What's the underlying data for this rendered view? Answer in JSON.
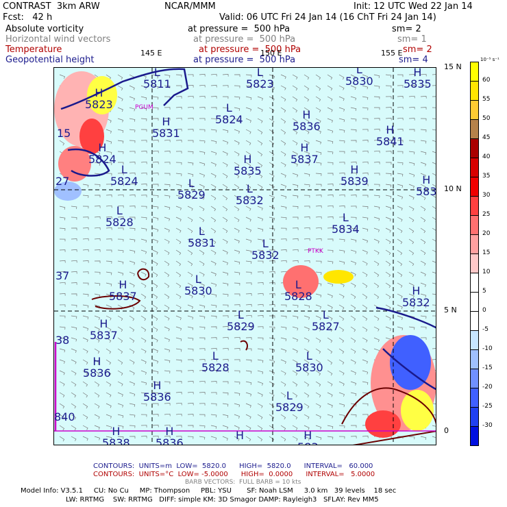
{
  "header": {
    "title_left": "CONTRAST  3km ARW",
    "title_center": "NCAR/MMM",
    "title_right": "Init: 12 UTC Wed 22 Jan 14",
    "forecast_label": "Fcst:   42 h",
    "valid": "Valid: 06 UTC Fri 24 Jan 14 (16 ChT Fri 24 Jan 14)"
  },
  "fields": [
    {
      "name": "Absolute vorticity",
      "level": "at pressure =  500 hPa",
      "sm": "sm= 2",
      "color": "#000000"
    },
    {
      "name": "Horizontal wind vectors",
      "level": "at pressure =  500 hPa",
      "sm": "sm= 1",
      "color": "#808080"
    },
    {
      "name": "Temperature",
      "level": "at pressure =  500 hPa",
      "sm": "sm= 2",
      "color": "#b00000"
    },
    {
      "name": "Geopotential height",
      "level": "at pressure =  500 hPa",
      "sm": "sm= 4",
      "color": "#1a1a8c"
    }
  ],
  "map": {
    "lon_labels": [
      "145 E",
      "150 E",
      "155 E"
    ],
    "lat_labels": [
      "15 N",
      "10 N",
      "5 N",
      "0"
    ],
    "station_labels": [
      "PGUM",
      "PTKK"
    ],
    "edge_values": [
      "15",
      "27",
      "37",
      "38",
      "840"
    ],
    "height_labels": [
      {
        "t": "L",
        "v": "5811"
      },
      {
        "t": "L",
        "v": "5823"
      },
      {
        "t": "L",
        "v": "5830"
      },
      {
        "t": "H",
        "v": "5835"
      },
      {
        "t": "H",
        "v": "5823"
      },
      {
        "t": "L",
        "v": "5824"
      },
      {
        "t": "H",
        "v": "5836"
      },
      {
        "t": "H",
        "v": "5831"
      },
      {
        "t": "H",
        "v": "5841"
      },
      {
        "t": "H",
        "v": "5824"
      },
      {
        "t": "H",
        "v": "5837"
      },
      {
        "t": "H",
        "v": "5835"
      },
      {
        "t": "L",
        "v": "5824"
      },
      {
        "t": "L",
        "v": "5829"
      },
      {
        "t": "L",
        "v": "5832"
      },
      {
        "t": "H",
        "v": "5839"
      },
      {
        "t": "H",
        "v": "583"
      },
      {
        "t": "L",
        "v": "5828"
      },
      {
        "t": "L",
        "v": "5834"
      },
      {
        "t": "L",
        "v": "5831"
      },
      {
        "t": "L",
        "v": "5832"
      },
      {
        "t": "L",
        "v": "5830"
      },
      {
        "t": "H",
        "v": "5837"
      },
      {
        "t": "L",
        "v": "5828"
      },
      {
        "t": "H",
        "v": "5832"
      },
      {
        "t": "H",
        "v": "5837"
      },
      {
        "t": "L",
        "v": "5829"
      },
      {
        "t": "L",
        "v": "5827"
      },
      {
        "t": "H",
        "v": "5836"
      },
      {
        "t": "L",
        "v": "5828"
      },
      {
        "t": "L",
        "v": "5830"
      },
      {
        "t": "H",
        "v": "5836"
      },
      {
        "t": "L",
        "v": "5829"
      },
      {
        "t": "H",
        "v": "5838"
      },
      {
        "t": "H",
        "v": "5836"
      },
      {
        "t": "H",
        "v": ""
      },
      {
        "t": "H",
        "v": "583"
      }
    ]
  },
  "colorbar": {
    "unit": "10⁻⁵ s⁻¹",
    "labels": [
      "60",
      "55",
      "50",
      "45",
      "40",
      "35",
      "30",
      "25",
      "20",
      "15",
      "10",
      "5",
      "0",
      "-5",
      "-10",
      "-15",
      "-20",
      "-25",
      "-30"
    ],
    "colors": [
      "#ffff00",
      "#ffe600",
      "#ffcc33",
      "#b5824a",
      "#aa0000",
      "#d80000",
      "#f00000",
      "#ff4040",
      "#ff7070",
      "#ffa0a0",
      "#ffc8c8",
      "#ffffff",
      "#ffffff",
      "#ffffff",
      "#c8e6ff",
      "#a0c0ff",
      "#7090ff",
      "#4060ff",
      "#2040f0",
      "#0010e0"
    ]
  },
  "footer": {
    "contours1": "CONTOURS:  UNITS=m  LOW=  5820.0      HIGH=  5820.0      INTERVAL=   60.000",
    "contours2": "CONTOURS:  UNITS=°C  LOW= -5.0000      HIGH=  0.0000      INTERVAL=   5.0000",
    "barb": "BARB VECTORS:  FULL BARB = 10 kts",
    "model1": "Model Info: V3.5.1     CU: No Cu     MP: Thompson     PBL: YSU       SF: Noah LSM     3.0 km   39 levels    18 sec",
    "model2": "LW: RRTMG    SW: RRTMG   DIFF: simple KM: 3D Smagor DAMP: Rayleigh3   SFLAY: Rev MM5"
  }
}
